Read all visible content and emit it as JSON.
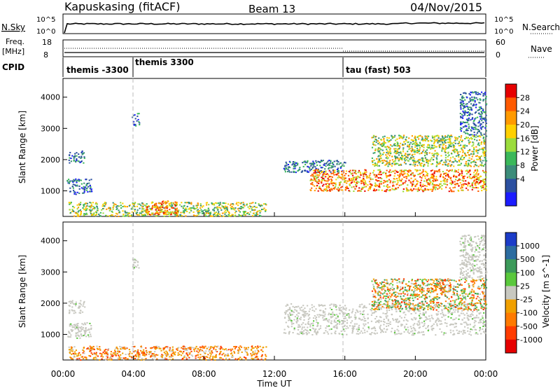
{
  "header": {
    "station": "Kapuskasing (fitACF)",
    "beam": "Beam 13",
    "date": "04/Nov/2015"
  },
  "noise_panel": {
    "left_label": "N.Sky",
    "right_label": "N.Search",
    "ticks_left": [
      "10^5",
      "10^0"
    ],
    "ticks_right": [
      "10^5",
      "10^0"
    ]
  },
  "freq_panel": {
    "left_label_1": "Freq.",
    "left_label_2": "[MHz]",
    "right_label": "Nave",
    "ticks_left": [
      "18",
      "8"
    ],
    "ticks_right": [
      "60",
      "0"
    ]
  },
  "cpid_panel": {
    "label": "CPID",
    "segments": [
      {
        "name": "themis -3300",
        "start_h": 0,
        "end_h": 4
      },
      {
        "name": "themis 3300",
        "start_h": 4,
        "end_h": 16
      },
      {
        "name": "tau (fast) 503",
        "start_h": 16,
        "end_h": 24
      }
    ]
  },
  "x_axis": {
    "label": "Time UT",
    "ticks": [
      "00:00",
      "04:00",
      "08:00",
      "12:00",
      "16:00",
      "20:00",
      "00:00"
    ],
    "range_h": [
      0,
      24
    ]
  },
  "power_panel": {
    "ylabel": "Slant Range [km]",
    "yticks": [
      "4000",
      "3000",
      "2000",
      "1000"
    ],
    "ytick_values": [
      4000,
      3000,
      2000,
      1000
    ],
    "yrange": [
      180,
      4600
    ],
    "colorbar_label": "Power [dB]",
    "colorbar_ticks": [
      "28",
      "24",
      "20",
      "16",
      "12",
      "8",
      "4"
    ],
    "colorbar_colors": [
      "#e60000",
      "#ff5a00",
      "#ff9a00",
      "#ffd000",
      "#9bdc3c",
      "#3bb85a",
      "#3c8c7a",
      "#2c50a0",
      "#1c1cff"
    ]
  },
  "velocity_panel": {
    "ylabel": "Slant Range [km]",
    "yticks": [
      "4000",
      "3000",
      "2000",
      "1000"
    ],
    "ytick_values": [
      4000,
      3000,
      2000,
      1000
    ],
    "yrange": [
      180,
      4600
    ],
    "colorbar_label": "Velocity [m s^-1]",
    "colorbar_ticks": [
      "1000",
      "500",
      "100",
      "25",
      "-25",
      "-100",
      "-500",
      "-1000"
    ],
    "colorbar_colors": [
      "#1c3cc8",
      "#2c6ca0",
      "#3c9a5a",
      "#5ac83c",
      "#c8c8c0",
      "#f0a000",
      "#ff7a00",
      "#ff3c00",
      "#e60000"
    ]
  },
  "chart_data": {
    "type": "heatmap",
    "title": "Kapuskasing (fitACF)",
    "xlabel": "Time UT",
    "ylabel": "Slant Range [km]",
    "xlim_h": [
      0,
      24
    ],
    "ylim": [
      180,
      4600
    ],
    "power_regions": [
      {
        "t0": 0.2,
        "t1": 1.6,
        "r0": 900,
        "r1": 1400,
        "level": "low"
      },
      {
        "t0": 0.3,
        "t1": 1.2,
        "r0": 1900,
        "r1": 2300,
        "level": "low"
      },
      {
        "t0": 3.9,
        "t1": 4.3,
        "r0": 3100,
        "r1": 3500,
        "level": "low"
      },
      {
        "t0": 0.3,
        "t1": 11.5,
        "r0": 200,
        "r1": 650,
        "level": "mid"
      },
      {
        "t0": 4.5,
        "t1": 6.5,
        "r0": 250,
        "r1": 700,
        "level": "high"
      },
      {
        "t0": 12.5,
        "t1": 16.0,
        "r0": 1600,
        "r1": 2000,
        "level": "low"
      },
      {
        "t0": 14.0,
        "t1": 24.0,
        "r0": 1000,
        "r1": 1700,
        "level": "high"
      },
      {
        "t0": 17.5,
        "t1": 24.0,
        "r0": 1800,
        "r1": 2800,
        "level": "mid"
      },
      {
        "t0": 21.0,
        "t1": 22.0,
        "r0": 2400,
        "r1": 2700,
        "level": "mid"
      },
      {
        "t0": 22.5,
        "t1": 24.0,
        "r0": 2800,
        "r1": 4200,
        "level": "low"
      }
    ],
    "velocity_regions": [
      {
        "t0": 0.2,
        "t1": 1.6,
        "r0": 900,
        "r1": 1400,
        "level": "ground"
      },
      {
        "t0": 0.3,
        "t1": 1.2,
        "r0": 1700,
        "r1": 2100,
        "level": "ground"
      },
      {
        "t0": 3.9,
        "t1": 4.3,
        "r0": 3100,
        "r1": 3500,
        "level": "ground"
      },
      {
        "t0": 0.3,
        "t1": 11.5,
        "r0": 200,
        "r1": 650,
        "level": "neg"
      },
      {
        "t0": 12.5,
        "t1": 24.0,
        "r0": 1000,
        "r1": 2000,
        "level": "ground"
      },
      {
        "t0": 17.5,
        "t1": 24.0,
        "r0": 1800,
        "r1": 2800,
        "level": "mixed"
      },
      {
        "t0": 21.0,
        "t1": 22.0,
        "r0": 2400,
        "r1": 2700,
        "level": "neg"
      },
      {
        "t0": 22.5,
        "t1": 24.0,
        "r0": 2800,
        "r1": 4200,
        "level": "ground"
      }
    ]
  }
}
